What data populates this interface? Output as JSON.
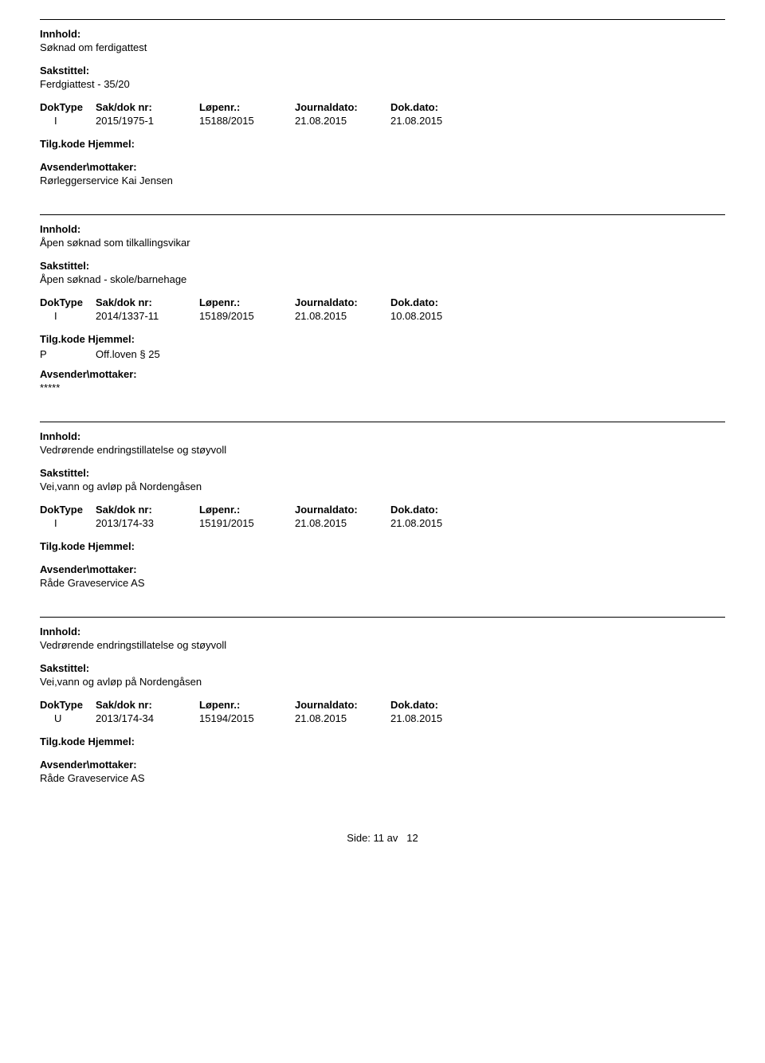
{
  "labels": {
    "innhold": "Innhold:",
    "sakstittel": "Sakstittel:",
    "doktype": "DokType",
    "sakdok": "Sak/dok nr:",
    "lopenr": "Løpenr.:",
    "journaldato": "Journaldato:",
    "dokdato": "Dok.dato:",
    "tilgkode": "Tilg.kode",
    "hjemmel": "Hjemmel:",
    "avsender": "Avsender\\mottaker:",
    "side": "Side:",
    "av": "av"
  },
  "entries": [
    {
      "innhold": "Søknad om ferdigattest",
      "sakstittel": "Ferdgiattest - 35/20",
      "doktype": "I",
      "sakdok": "2015/1975-1",
      "lopenr": "15188/2015",
      "journaldato": "21.08.2015",
      "dokdato": "21.08.2015",
      "tilgcode": "",
      "hjemmel": "",
      "avsender": "Rørleggerservice Kai Jensen"
    },
    {
      "innhold": "Åpen søknad som tilkallingsvikar",
      "sakstittel": "Åpen søknad - skole/barnehage",
      "doktype": "I",
      "sakdok": "2014/1337-11",
      "lopenr": "15189/2015",
      "journaldato": "21.08.2015",
      "dokdato": "10.08.2015",
      "tilgcode": "P",
      "hjemmel": "Off.loven § 25",
      "avsender": "*****"
    },
    {
      "innhold": "Vedrørende endringstillatelse og støyvoll",
      "sakstittel": "Vei,vann og avløp på Nordengåsen",
      "doktype": "I",
      "sakdok": "2013/174-33",
      "lopenr": "15191/2015",
      "journaldato": "21.08.2015",
      "dokdato": "21.08.2015",
      "tilgcode": "",
      "hjemmel": "",
      "avsender": "Råde Graveservice AS"
    },
    {
      "innhold": "Vedrørende endringstillatelse og støyvoll",
      "sakstittel": "Vei,vann og avløp på Nordengåsen",
      "doktype": "U",
      "sakdok": "2013/174-34",
      "lopenr": "15194/2015",
      "journaldato": "21.08.2015",
      "dokdato": "21.08.2015",
      "tilgcode": "",
      "hjemmel": "",
      "avsender": "Råde Graveservice AS"
    }
  ],
  "page": {
    "current": "11",
    "total": "12"
  }
}
